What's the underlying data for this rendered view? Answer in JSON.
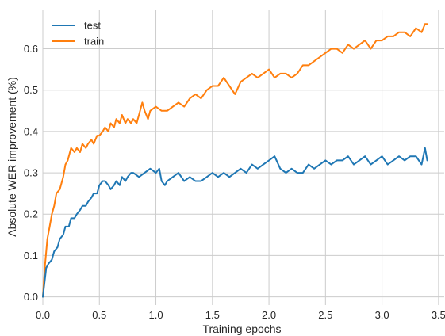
{
  "chart_data": {
    "type": "line",
    "title": "",
    "xlabel": "Training epochs",
    "ylabel": "Absolute WER improvement (%)",
    "xlim": [
      0.0,
      3.55
    ],
    "ylim": [
      -0.02,
      0.695
    ],
    "x_ticks": [
      0.0,
      0.5,
      1.0,
      1.5,
      2.0,
      2.5,
      3.0,
      3.5
    ],
    "x_tick_labels": [
      "0.0",
      "0.5",
      "1.0",
      "1.5",
      "2.0",
      "2.5",
      "3.0",
      "3.5"
    ],
    "y_ticks": [
      0.0,
      0.1,
      0.2,
      0.3,
      0.4,
      0.5,
      0.6
    ],
    "y_tick_labels": [
      "0.0",
      "0.1",
      "0.2",
      "0.3",
      "0.4",
      "0.5",
      "0.6"
    ],
    "grid": true,
    "legend_position": "top-left",
    "series": [
      {
        "name": "test",
        "color": "#1f77b4",
        "x": [
          0.0,
          0.03,
          0.05,
          0.08,
          0.1,
          0.13,
          0.15,
          0.18,
          0.2,
          0.23,
          0.25,
          0.28,
          0.3,
          0.33,
          0.35,
          0.38,
          0.4,
          0.43,
          0.45,
          0.48,
          0.5,
          0.53,
          0.55,
          0.58,
          0.6,
          0.63,
          0.65,
          0.68,
          0.7,
          0.73,
          0.75,
          0.78,
          0.8,
          0.85,
          0.9,
          0.95,
          1.0,
          1.03,
          1.05,
          1.08,
          1.1,
          1.15,
          1.2,
          1.25,
          1.3,
          1.35,
          1.4,
          1.45,
          1.5,
          1.55,
          1.6,
          1.65,
          1.7,
          1.75,
          1.8,
          1.85,
          1.9,
          1.95,
          2.0,
          2.05,
          2.1,
          2.15,
          2.2,
          2.25,
          2.3,
          2.35,
          2.4,
          2.45,
          2.5,
          2.55,
          2.6,
          2.65,
          2.7,
          2.75,
          2.8,
          2.85,
          2.9,
          2.95,
          3.0,
          3.05,
          3.1,
          3.15,
          3.2,
          3.25,
          3.3,
          3.35,
          3.38,
          3.4
        ],
        "y": [
          0.0,
          0.07,
          0.08,
          0.09,
          0.11,
          0.12,
          0.14,
          0.15,
          0.17,
          0.17,
          0.19,
          0.19,
          0.2,
          0.21,
          0.22,
          0.22,
          0.23,
          0.24,
          0.25,
          0.25,
          0.27,
          0.28,
          0.28,
          0.27,
          0.26,
          0.27,
          0.28,
          0.27,
          0.29,
          0.28,
          0.29,
          0.3,
          0.3,
          0.29,
          0.3,
          0.31,
          0.3,
          0.31,
          0.28,
          0.27,
          0.28,
          0.29,
          0.3,
          0.28,
          0.29,
          0.28,
          0.28,
          0.29,
          0.3,
          0.29,
          0.3,
          0.29,
          0.3,
          0.31,
          0.3,
          0.32,
          0.31,
          0.32,
          0.33,
          0.34,
          0.31,
          0.3,
          0.31,
          0.3,
          0.3,
          0.32,
          0.31,
          0.32,
          0.33,
          0.32,
          0.33,
          0.33,
          0.34,
          0.32,
          0.33,
          0.34,
          0.32,
          0.33,
          0.34,
          0.32,
          0.33,
          0.34,
          0.33,
          0.34,
          0.34,
          0.32,
          0.36,
          0.33
        ]
      },
      {
        "name": "train",
        "color": "#ff7f0e",
        "x": [
          0.0,
          0.02,
          0.04,
          0.06,
          0.08,
          0.1,
          0.12,
          0.15,
          0.18,
          0.2,
          0.22,
          0.25,
          0.28,
          0.3,
          0.33,
          0.35,
          0.38,
          0.4,
          0.43,
          0.45,
          0.48,
          0.5,
          0.53,
          0.55,
          0.58,
          0.6,
          0.63,
          0.65,
          0.68,
          0.7,
          0.73,
          0.75,
          0.78,
          0.8,
          0.83,
          0.85,
          0.88,
          0.9,
          0.93,
          0.95,
          1.0,
          1.05,
          1.1,
          1.15,
          1.2,
          1.25,
          1.3,
          1.35,
          1.4,
          1.45,
          1.5,
          1.55,
          1.6,
          1.65,
          1.7,
          1.75,
          1.8,
          1.85,
          1.9,
          1.95,
          2.0,
          2.05,
          2.1,
          2.15,
          2.2,
          2.25,
          2.3,
          2.35,
          2.4,
          2.45,
          2.5,
          2.55,
          2.6,
          2.65,
          2.7,
          2.75,
          2.8,
          2.85,
          2.9,
          2.95,
          3.0,
          3.05,
          3.1,
          3.15,
          3.2,
          3.25,
          3.3,
          3.35,
          3.38,
          3.4
        ],
        "y": [
          0.0,
          0.08,
          0.14,
          0.17,
          0.2,
          0.22,
          0.25,
          0.26,
          0.29,
          0.32,
          0.33,
          0.36,
          0.35,
          0.36,
          0.35,
          0.37,
          0.36,
          0.37,
          0.38,
          0.37,
          0.39,
          0.39,
          0.4,
          0.41,
          0.4,
          0.42,
          0.41,
          0.43,
          0.42,
          0.44,
          0.42,
          0.43,
          0.42,
          0.43,
          0.42,
          0.44,
          0.47,
          0.45,
          0.43,
          0.45,
          0.46,
          0.45,
          0.45,
          0.46,
          0.47,
          0.46,
          0.48,
          0.49,
          0.48,
          0.5,
          0.51,
          0.51,
          0.53,
          0.51,
          0.49,
          0.52,
          0.53,
          0.54,
          0.53,
          0.54,
          0.55,
          0.53,
          0.54,
          0.54,
          0.53,
          0.54,
          0.56,
          0.56,
          0.57,
          0.58,
          0.59,
          0.6,
          0.6,
          0.59,
          0.61,
          0.6,
          0.61,
          0.62,
          0.6,
          0.62,
          0.62,
          0.63,
          0.63,
          0.64,
          0.64,
          0.63,
          0.65,
          0.64,
          0.66,
          0.66
        ]
      }
    ]
  }
}
